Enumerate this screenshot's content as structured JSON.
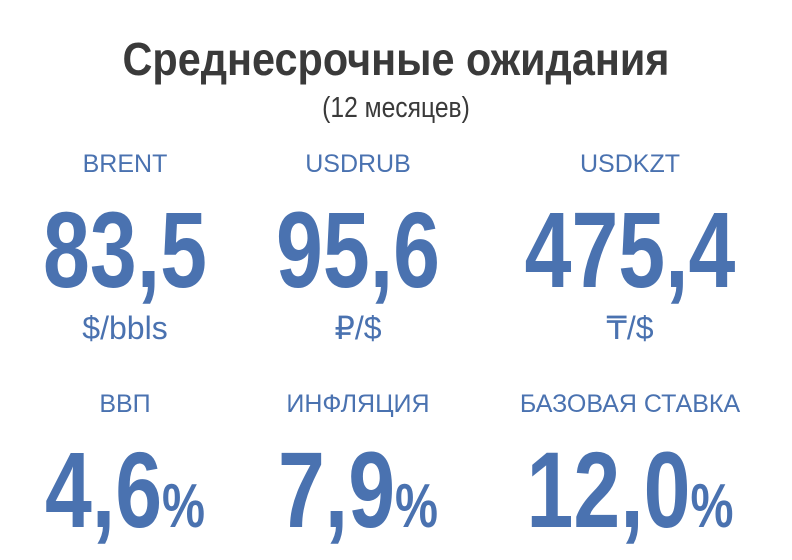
{
  "header": {
    "title": "Среднесрочные ожидания",
    "subtitle": "(12 месяцев)"
  },
  "items": [
    {
      "label": "BRENT",
      "value": "83,5",
      "unit": "$/bbls"
    },
    {
      "label": "USDRUB",
      "value": "95,6",
      "unit": "₽/$"
    },
    {
      "label": "USDKZT",
      "value": "475,4",
      "unit": "₸/$"
    },
    {
      "label": "ВВП",
      "value": "4,6",
      "suffix": "%"
    },
    {
      "label": "ИНФЛЯЦИЯ",
      "value": "7,9",
      "suffix": "%"
    },
    {
      "label": "БАЗОВАЯ СТАВКА",
      "value": "12,0",
      "suffix": "%"
    }
  ]
}
